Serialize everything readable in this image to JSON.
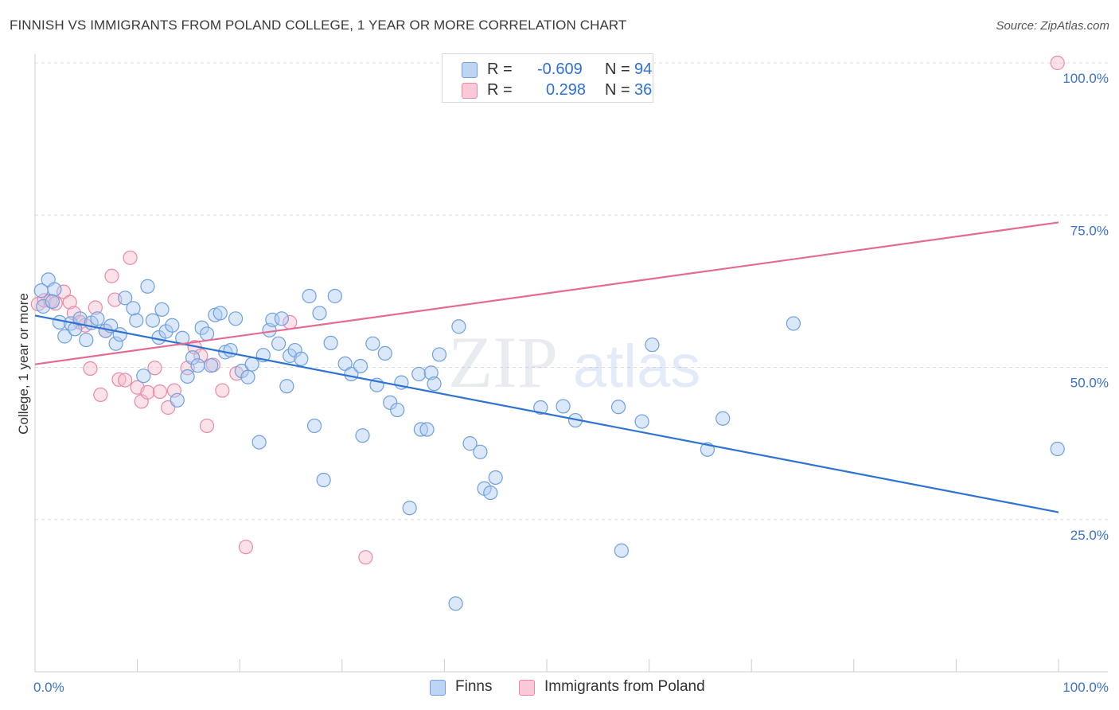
{
  "header": {
    "title": "FINNISH VS IMMIGRANTS FROM POLAND COLLEGE, 1 YEAR OR MORE CORRELATION CHART",
    "source": "Source: ZipAtlas.com"
  },
  "watermark": {
    "zip": "ZIP",
    "atlas": "atlas"
  },
  "legend": {
    "r_label": "R =",
    "n_label": "N =",
    "finns": {
      "r": "-0.609",
      "n": "94"
    },
    "poland": {
      "r": "0.298",
      "n": "36"
    }
  },
  "bottom_legend": {
    "finns": "Finns",
    "poland": "Immigrants from Poland"
  },
  "colors": {
    "finns_fill": "#aecbf2",
    "finns_stroke": "#6f9fe0",
    "finns_line": "#2f73d1",
    "poland_fill": "#f7bccd",
    "poland_stroke": "#e989a7",
    "poland_line": "#e36b93",
    "grid": "#dddddd",
    "tick_label": "#3b73c8"
  },
  "chart_data": {
    "type": "scatter",
    "title": "FINNISH VS IMMIGRANTS FROM POLAND COLLEGE, 1 YEAR OR MORE CORRELATION CHART",
    "xlabel": "",
    "ylabel": "College, 1 year or more",
    "xlim": [
      0,
      100
    ],
    "ylim": [
      0,
      100
    ],
    "x_tick_labels": [
      "0.0%",
      "100.0%"
    ],
    "y_ticks": [
      25,
      50,
      75,
      100
    ],
    "y_tick_labels": [
      "25.0%",
      "50.0%",
      "75.0%",
      "100.0%"
    ],
    "grid": true,
    "series": [
      {
        "name": "Finns",
        "r": -0.609,
        "n": 94,
        "trend": {
          "x": [
            0,
            100
          ],
          "y": [
            58.5,
            26.2
          ]
        },
        "points": [
          [
            0.6,
            62.6
          ],
          [
            1.3,
            64.4
          ],
          [
            1.9,
            62.8
          ],
          [
            0.8,
            60.0
          ],
          [
            2.4,
            57.4
          ],
          [
            2.9,
            55.1
          ],
          [
            3.5,
            57.2
          ],
          [
            3.9,
            56.3
          ],
          [
            4.4,
            58.0
          ],
          [
            5.0,
            54.5
          ],
          [
            5.5,
            57.3
          ],
          [
            6.1,
            58.0
          ],
          [
            6.9,
            56.0
          ],
          [
            7.4,
            56.8
          ],
          [
            7.9,
            53.9
          ],
          [
            8.3,
            55.4
          ],
          [
            8.8,
            61.4
          ],
          [
            9.6,
            59.7
          ],
          [
            9.9,
            57.7
          ],
          [
            10.6,
            48.6
          ],
          [
            11.0,
            63.3
          ],
          [
            11.5,
            57.7
          ],
          [
            12.1,
            54.9
          ],
          [
            12.4,
            59.5
          ],
          [
            12.8,
            55.9
          ],
          [
            13.4,
            56.9
          ],
          [
            13.9,
            44.6
          ],
          [
            14.4,
            54.8
          ],
          [
            14.9,
            48.5
          ],
          [
            15.4,
            51.6
          ],
          [
            15.9,
            50.3
          ],
          [
            16.3,
            56.5
          ],
          [
            16.8,
            55.5
          ],
          [
            17.2,
            50.3
          ],
          [
            17.6,
            58.6
          ],
          [
            18.1,
            58.9
          ],
          [
            18.6,
            52.5
          ],
          [
            19.1,
            52.8
          ],
          [
            19.6,
            58.0
          ],
          [
            20.2,
            49.4
          ],
          [
            20.8,
            48.4
          ],
          [
            21.2,
            50.5
          ],
          [
            21.9,
            37.7
          ],
          [
            22.3,
            52.0
          ],
          [
            22.9,
            56.1
          ],
          [
            23.2,
            57.8
          ],
          [
            23.8,
            53.9
          ],
          [
            24.1,
            58.0
          ],
          [
            24.6,
            46.9
          ],
          [
            24.9,
            51.9
          ],
          [
            25.4,
            52.8
          ],
          [
            26.0,
            51.4
          ],
          [
            26.8,
            61.7
          ],
          [
            27.3,
            40.4
          ],
          [
            27.8,
            58.9
          ],
          [
            28.2,
            31.5
          ],
          [
            28.9,
            54.0
          ],
          [
            29.3,
            61.7
          ],
          [
            30.3,
            50.6
          ],
          [
            30.9,
            48.9
          ],
          [
            31.8,
            50.2
          ],
          [
            32.0,
            38.8
          ],
          [
            33.0,
            53.9
          ],
          [
            33.4,
            47.1
          ],
          [
            34.2,
            52.3
          ],
          [
            34.7,
            44.2
          ],
          [
            35.4,
            43.0
          ],
          [
            35.8,
            47.5
          ],
          [
            36.6,
            26.9
          ],
          [
            37.5,
            48.9
          ],
          [
            37.7,
            39.8
          ],
          [
            38.3,
            39.8
          ],
          [
            38.7,
            49.1
          ],
          [
            39.0,
            47.3
          ],
          [
            39.5,
            52.1
          ],
          [
            41.1,
            11.2
          ],
          [
            41.4,
            56.7
          ],
          [
            42.5,
            37.5
          ],
          [
            43.5,
            36.1
          ],
          [
            43.9,
            30.1
          ],
          [
            44.5,
            29.4
          ],
          [
            45.0,
            31.9
          ],
          [
            49.4,
            43.4
          ],
          [
            51.6,
            43.6
          ],
          [
            52.8,
            41.3
          ],
          [
            57.0,
            43.5
          ],
          [
            57.3,
            19.9
          ],
          [
            59.3,
            41.1
          ],
          [
            60.3,
            53.7
          ],
          [
            65.7,
            36.5
          ],
          [
            67.2,
            41.6
          ],
          [
            74.1,
            57.2
          ],
          [
            99.9,
            36.6
          ],
          [
            1.7,
            60.8
          ]
        ]
      },
      {
        "name": "Immigrants from Poland",
        "r": 0.298,
        "n": 36,
        "trend": {
          "x": [
            0,
            100
          ],
          "y": [
            50.5,
            73.8
          ]
        },
        "points": [
          [
            0.3,
            60.4
          ],
          [
            0.9,
            61.0
          ],
          [
            1.5,
            60.9
          ],
          [
            2.0,
            60.5
          ],
          [
            2.8,
            62.4
          ],
          [
            3.4,
            60.7
          ],
          [
            3.8,
            58.9
          ],
          [
            4.4,
            57.4
          ],
          [
            4.9,
            56.9
          ],
          [
            5.4,
            49.8
          ],
          [
            5.9,
            59.8
          ],
          [
            6.4,
            45.5
          ],
          [
            6.9,
            56.0
          ],
          [
            7.5,
            65.0
          ],
          [
            7.8,
            61.1
          ],
          [
            8.2,
            48.0
          ],
          [
            8.8,
            47.9
          ],
          [
            9.3,
            68.0
          ],
          [
            10.0,
            46.7
          ],
          [
            10.4,
            44.4
          ],
          [
            11.0,
            45.9
          ],
          [
            11.7,
            49.9
          ],
          [
            12.2,
            46.0
          ],
          [
            13.0,
            43.4
          ],
          [
            13.6,
            46.2
          ],
          [
            14.9,
            49.9
          ],
          [
            15.6,
            53.3
          ],
          [
            16.2,
            51.9
          ],
          [
            16.8,
            40.4
          ],
          [
            17.4,
            50.4
          ],
          [
            18.3,
            46.2
          ],
          [
            19.7,
            49.0
          ],
          [
            20.6,
            20.5
          ],
          [
            24.9,
            57.4
          ],
          [
            32.3,
            18.8
          ],
          [
            99.9,
            100.0
          ]
        ]
      }
    ]
  }
}
